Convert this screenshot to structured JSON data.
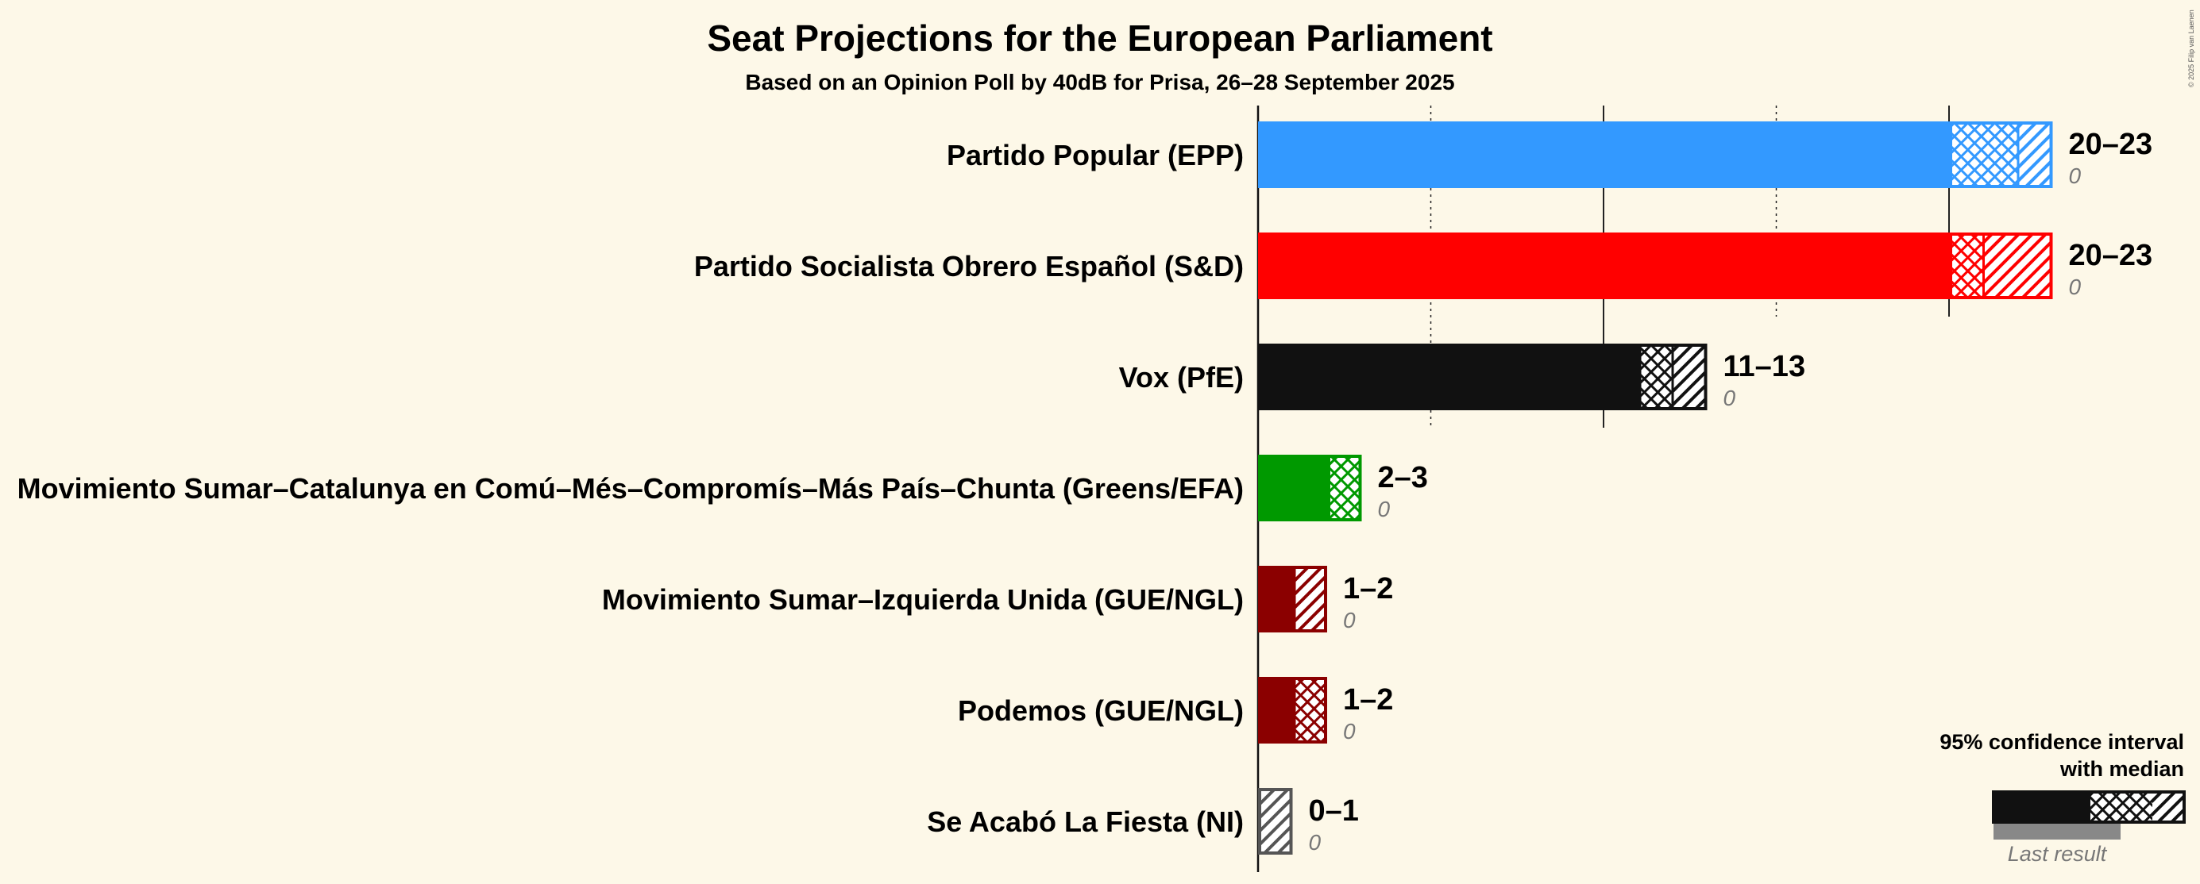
{
  "chart_data": {
    "type": "bar",
    "orientation": "horizontal",
    "title": "Seat Projections for the European Parliament",
    "subtitle": "Based on an Opinion Poll by 40dB for Prisa, 26–28 September 2025",
    "credit": "© 2025 Filip van Laenen",
    "xlim": [
      0,
      23
    ],
    "grid": "solid lines at every 10 seats, dotted lines at every 5 seats",
    "series": [
      {
        "name": "Partido Popular (EPP)",
        "low": 20,
        "median": 22,
        "high": 23,
        "range_label": "20–23",
        "last_result": 0,
        "last_label": "0",
        "color": "#3399ff"
      },
      {
        "name": "Partido Socialista Obrero Español (S&D)",
        "low": 20,
        "median": 21,
        "high": 23,
        "range_label": "20–23",
        "last_result": 0,
        "last_label": "0",
        "color": "#ff0000"
      },
      {
        "name": "Vox (PfE)",
        "low": 11,
        "median": 12,
        "high": 13,
        "range_label": "11–13",
        "last_result": 0,
        "last_label": "0",
        "color": "#111111"
      },
      {
        "name": "Movimiento Sumar–Catalunya en Comú–Més–Compromís–Más País–Chunta (Greens/EFA)",
        "low": 2,
        "median": 3,
        "high": 3,
        "range_label": "2–3",
        "last_result": 0,
        "last_label": "0",
        "color": "#009900"
      },
      {
        "name": "Movimiento Sumar–Izquierda Unida (GUE/NGL)",
        "low": 1,
        "median": 1,
        "high": 2,
        "range_label": "1–2",
        "last_result": 0,
        "last_label": "0",
        "color": "#8b0000"
      },
      {
        "name": "Podemos (GUE/NGL)",
        "low": 1,
        "median": 2,
        "high": 2,
        "range_label": "1–2",
        "last_result": 0,
        "last_label": "0",
        "color": "#8b0000"
      },
      {
        "name": "Se Acabó La Fiesta (NI)",
        "low": 0,
        "median": 0,
        "high": 1,
        "range_label": "0–1",
        "last_result": 0,
        "last_label": "0",
        "color": "#555555"
      }
    ],
    "legend": {
      "position": "bottom-right",
      "line1": "95% confidence interval",
      "line2": "with median",
      "last_result": "Last result"
    }
  }
}
